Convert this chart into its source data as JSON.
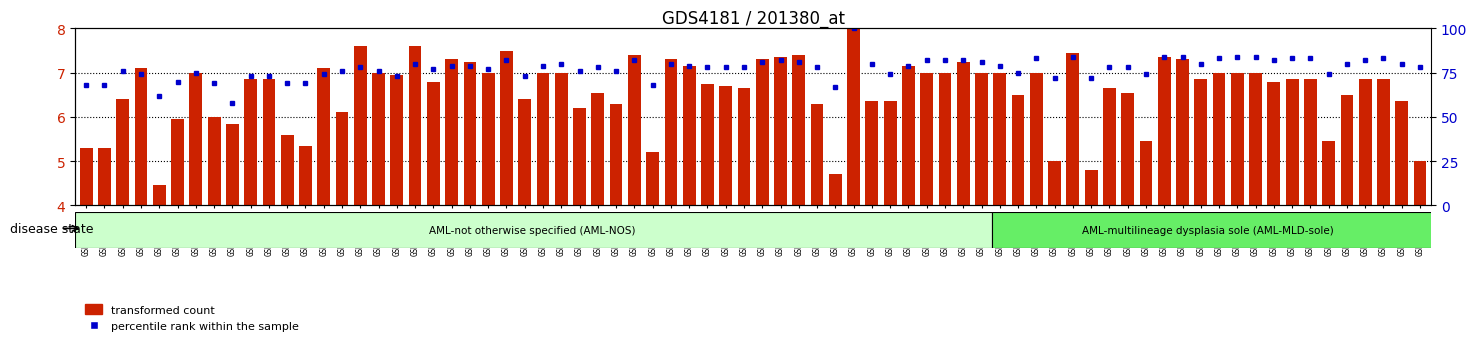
{
  "title": "GDS4181 / 201380_at",
  "samples": [
    "GSM531602",
    "GSM531604",
    "GSM531606",
    "GSM531607",
    "GSM531608",
    "GSM531610",
    "GSM531612",
    "GSM531613",
    "GSM531614",
    "GSM531616",
    "GSM531618",
    "GSM531619",
    "GSM531620",
    "GSM531623",
    "GSM531625",
    "GSM531626",
    "GSM531632",
    "GSM531638",
    "GSM531641",
    "GSM531642",
    "GSM531644",
    "GSM531645",
    "GSM531646",
    "GSM531647",
    "GSM531650",
    "GSM531651",
    "GSM531661",
    "GSM531662",
    "GSM531663",
    "GSM531664",
    "GSM531666",
    "GSM531667",
    "GSM531668",
    "GSM531669",
    "GSM531671",
    "GSM531672",
    "GSM531673",
    "GSM531676",
    "GSM531679",
    "GSM531681",
    "GSM531682",
    "GSM531683",
    "GSM531684",
    "GSM531685",
    "GSM531686",
    "GSM531687",
    "GSM531688",
    "GSM531690",
    "GSM531693",
    "GSM531695",
    "GSM531603",
    "GSM531609",
    "GSM531611",
    "GSM531621",
    "GSM531622",
    "GSM531628",
    "GSM531630",
    "GSM531633",
    "GSM531635",
    "GSM531640",
    "GSM531649",
    "GSM531653",
    "GSM531657",
    "GSM531665",
    "GSM531670",
    "GSM531674",
    "GSM531675",
    "GSM531677",
    "GSM531678",
    "GSM531680",
    "GSM531689",
    "GSM531691",
    "GSM531692",
    "GSM531694"
  ],
  "bar_values": [
    5.3,
    5.3,
    6.4,
    7.1,
    4.45,
    5.95,
    7.0,
    6.0,
    5.85,
    6.85,
    6.85,
    5.6,
    5.35,
    7.1,
    6.1,
    7.6,
    7.0,
    6.95,
    7.6,
    6.8,
    7.3,
    7.25,
    7.0,
    7.5,
    6.4,
    7.0,
    7.0,
    6.2,
    6.55,
    6.3,
    7.4,
    5.2,
    7.3,
    7.15,
    6.75,
    6.7,
    6.65,
    7.3,
    7.35,
    7.4,
    6.3,
    4.7,
    8.1,
    6.35,
    6.35,
    7.15,
    7.0,
    7.0,
    7.25,
    7.0,
    7.0,
    6.5,
    7.0,
    5.0,
    7.45,
    4.8,
    6.65,
    6.55,
    5.45,
    7.35,
    7.3,
    6.85,
    7.0,
    7.0,
    7.0,
    6.8,
    6.85,
    6.85,
    5.45,
    6.5,
    6.85,
    6.85,
    6.35,
    5.0
  ],
  "percentile_values": [
    68,
    68,
    76,
    74,
    62,
    70,
    75,
    69,
    58,
    73,
    73,
    69,
    69,
    74,
    76,
    78,
    76,
    73,
    80,
    77,
    79,
    79,
    77,
    82,
    73,
    79,
    80,
    76,
    78,
    76,
    82,
    68,
    80,
    79,
    78,
    78,
    78,
    81,
    82,
    81,
    78,
    67,
    100,
    80,
    74,
    79,
    82,
    82,
    82,
    81,
    79,
    75,
    83,
    72,
    84,
    72,
    78,
    78,
    74,
    84,
    84,
    80,
    83,
    84,
    84,
    82,
    83,
    83,
    74,
    80,
    82,
    83,
    80,
    78
  ],
  "nos_count": 50,
  "mld_count": 24,
  "bar_color": "#cc2200",
  "dot_color": "#0000cc",
  "nos_color": "#ccffcc",
  "mld_color": "#66ee66",
  "nos_label": "AML-not otherwise specified (AML-NOS)",
  "mld_label": "AML-multilineage dysplasia sole (AML-MLD-sole)",
  "ylim_left": [
    4,
    8
  ],
  "ylim_right": [
    0,
    100
  ],
  "yticks_left": [
    4,
    5,
    6,
    7,
    8
  ],
  "yticks_right": [
    0,
    25,
    50,
    75,
    100
  ],
  "ylabel_left_color": "#cc2200",
  "ylabel_right_color": "#0000cc",
  "disease_state_label": "disease state",
  "legend_bar_label": "transformed count",
  "legend_dot_label": "percentile rank within the sample"
}
